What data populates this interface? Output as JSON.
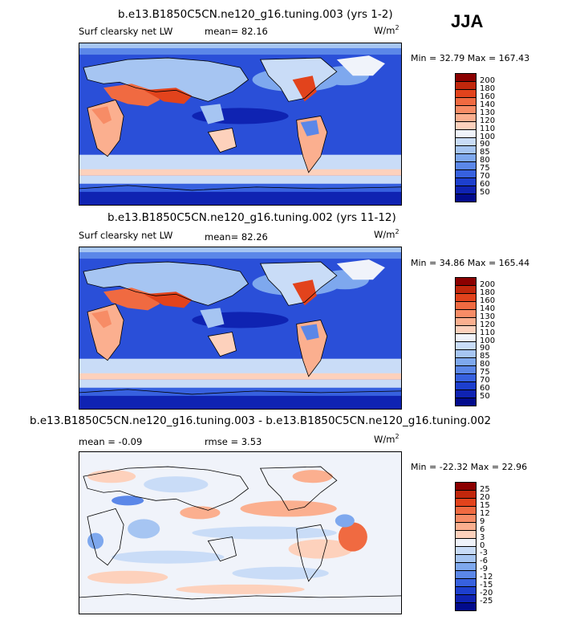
{
  "season": "JJA",
  "panels": [
    {
      "title": "b.e13.B1850C5CN.ne120_g16.tuning.003 (yrs 1-2)",
      "left_label": "Surf clearsky net LW",
      "center_label": "mean=  82.16",
      "units": "W/m",
      "units_exp": "2",
      "minmax": "Min =  32.79 Max = 167.43",
      "colorbar": {
        "labels": [
          "200",
          "180",
          "160",
          "140",
          "130",
          "120",
          "110",
          "100",
          "90",
          "85",
          "80",
          "75",
          "70",
          "60",
          "50"
        ],
        "colors": [
          "#8b0000",
          "#c1270c",
          "#e2431c",
          "#f06a41",
          "#f78c66",
          "#fbaf8f",
          "#fdd1bc",
          "#f0f3fa",
          "#c9dcf7",
          "#a6c5f2",
          "#7ea8ee",
          "#5b87e8",
          "#3761df",
          "#1d3fce",
          "#0f23b2",
          "#020b8c"
        ]
      }
    },
    {
      "title": "b.e13.B1850C5CN.ne120_g16.tuning.002 (yrs 11-12)",
      "left_label": "Surf clearsky net LW",
      "center_label": "mean=  82.26",
      "units": "W/m",
      "units_exp": "2",
      "minmax": "Min =  34.86 Max = 165.44",
      "colorbar": {
        "labels": [
          "200",
          "180",
          "160",
          "140",
          "130",
          "120",
          "110",
          "100",
          "90",
          "85",
          "80",
          "75",
          "70",
          "60",
          "50"
        ],
        "colors": [
          "#8b0000",
          "#c1270c",
          "#e2431c",
          "#f06a41",
          "#f78c66",
          "#fbaf8f",
          "#fdd1bc",
          "#f0f3fa",
          "#c9dcf7",
          "#a6c5f2",
          "#7ea8ee",
          "#5b87e8",
          "#3761df",
          "#1d3fce",
          "#0f23b2",
          "#020b8c"
        ]
      }
    },
    {
      "title": "b.e13.B1850C5CN.ne120_g16.tuning.003 - b.e13.B1850C5CN.ne120_g16.tuning.002",
      "left_label": "mean = -0.09",
      "center_label": "rmse =  3.53",
      "units": "W/m",
      "units_exp": "2",
      "minmax": "Min = -22.32 Max =  22.96",
      "colorbar": {
        "labels": [
          "25",
          "20",
          "15",
          "12",
          "9",
          "6",
          "3",
          "0",
          "-3",
          "-6",
          "-9",
          "-12",
          "-15",
          "-20",
          "-25"
        ],
        "colors": [
          "#8b0000",
          "#c1270c",
          "#e2431c",
          "#f06a41",
          "#f78c66",
          "#fbaf8f",
          "#fdd1bc",
          "#f0f3fa",
          "#c9dcf7",
          "#a6c5f2",
          "#7ea8ee",
          "#5b87e8",
          "#3761df",
          "#1d3fce",
          "#0f23b2",
          "#020b8c"
        ]
      }
    }
  ]
}
